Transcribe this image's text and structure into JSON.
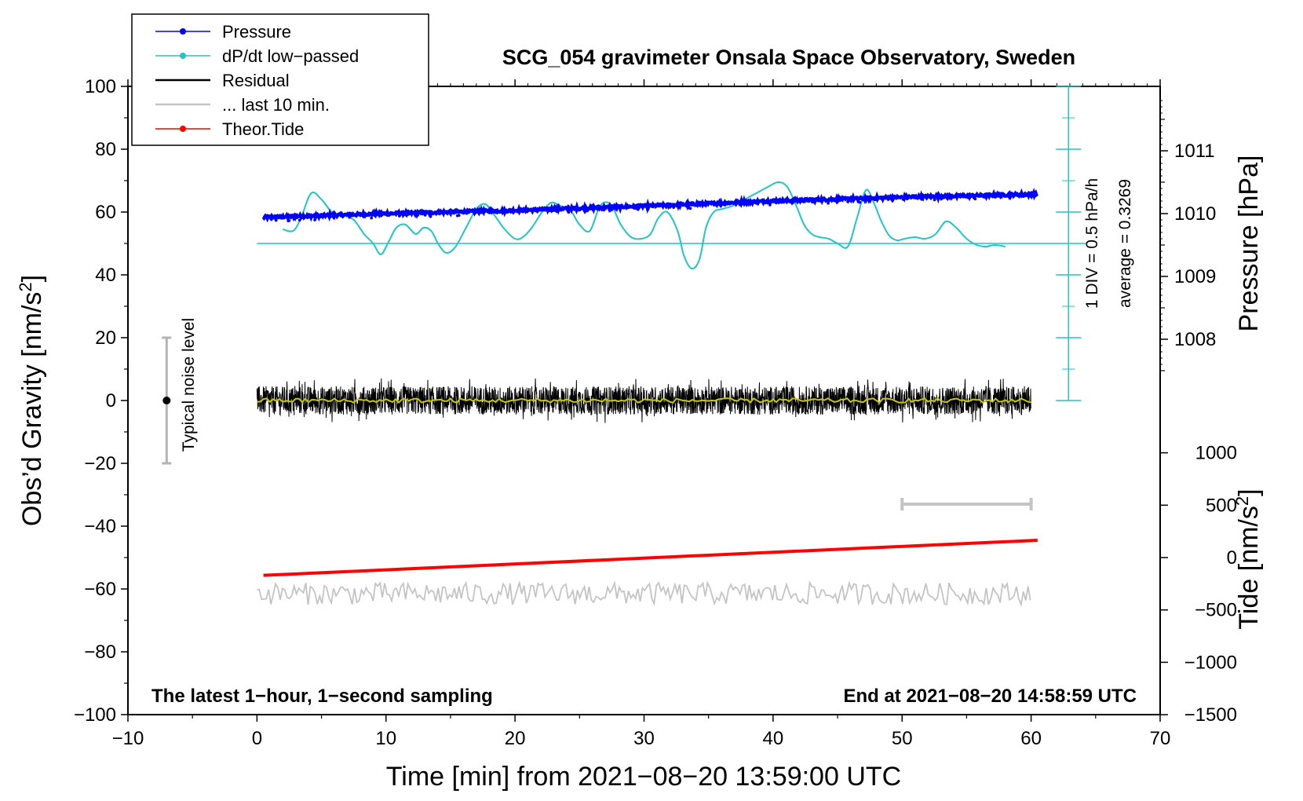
{
  "chart_data": {
    "type": "line",
    "title": "SCG_054 gravimeter Onsala Space Observatory, Sweden",
    "xlabel": "Time [min] from 2021−08−20 13:59:00 UTC",
    "ylabel_left": "Obs’d Gravity [nm/s",
    "ylabel_left_sup": "2",
    "ylabel_left_end": "]",
    "ylabel_right_pressure": "Pressure [hPa]",
    "ylabel_right_tide": "Tide [nm/s",
    "ylabel_right_tide_sup": "2",
    "ylabel_right_tide_end": "]",
    "xlim": [
      -10,
      70
    ],
    "ylim_left": [
      -100,
      100
    ],
    "x_ticks": [
      -10,
      0,
      10,
      20,
      30,
      40,
      50,
      60,
      70
    ],
    "x_tick_labels": [
      "−10",
      "0",
      "10",
      "20",
      "30",
      "40",
      "50",
      "60",
      "70"
    ],
    "y_ticks_left": [
      -100,
      -80,
      -60,
      -40,
      -20,
      0,
      20,
      40,
      60,
      80,
      100
    ],
    "y_tick_labels_left": [
      "−100",
      "−80",
      "−60",
      "−40",
      "−20",
      "0",
      "20",
      "40",
      "60",
      "80",
      "100"
    ],
    "pressure_ticks": [
      1008,
      1009,
      1010,
      1011
    ],
    "pressure_tick_labels": [
      "1008",
      "1009",
      "1010",
      "1011"
    ],
    "tide_ticks": [
      -1500,
      -1000,
      -500,
      0,
      500,
      1000
    ],
    "tide_tick_labels": [
      "−1500",
      "−1000",
      "−500",
      "0",
      "500",
      "1000"
    ],
    "legend": {
      "position": "top-left",
      "entries": [
        {
          "label": "Pressure",
          "color": "#0000ff",
          "marker": true
        },
        {
          "label": "dP/dt low−passed",
          "color": "#22c4c4",
          "marker": true
        },
        {
          "label": "Residual",
          "color": "#000000",
          "marker": false
        },
        {
          "label": "... last 10 min.",
          "color": "#c4c4c4",
          "marker": false
        },
        {
          "label": "Theor.Tide",
          "color": "#ff0000",
          "marker": true
        }
      ]
    },
    "annotations": {
      "bottom_left": "The latest 1−hour, 1−second sampling",
      "bottom_right": "End at 2021−08−20 14:58:59 UTC",
      "noise_label": "Typical noise level",
      "div_label": "1 DIV = 0.5 hPa/h",
      "average_label": "average = 0.3269"
    },
    "series": [
      {
        "name": "Pressure",
        "color": "#0000ff",
        "unit": "hPa",
        "x": [
          0.5,
          10,
          20,
          30,
          40,
          50,
          60.5
        ],
        "y": [
          1009.94,
          1010.0,
          1010.05,
          1010.12,
          1010.2,
          1010.26,
          1010.31
        ]
      },
      {
        "name": "dP/dt low-passed",
        "color": "#22c4c4",
        "baseline_y": 50,
        "x": [
          2,
          2.8,
          3.4,
          4.2,
          5,
          5.8,
          6.6,
          7.5,
          8.3,
          9,
          9.6,
          10.2,
          10.8,
          11.5,
          12.3,
          12.9,
          13.5,
          14.1,
          14.7,
          15.4,
          16.2,
          17,
          17.7,
          18.4,
          19.2,
          20,
          20.6,
          21.3,
          22.1,
          22.8,
          23.5,
          24.3,
          25,
          25.8,
          26.6,
          27.4,
          28.2,
          29,
          29.8,
          30.5,
          31.1,
          31.8,
          32.6,
          33.1,
          33.7,
          34.3,
          34.8,
          35.4,
          36.1,
          36.9,
          37.8,
          38.7,
          39.6,
          40.4,
          41.1,
          41.8,
          42.4,
          43.0,
          43.6,
          44.3,
          45.0,
          45.8,
          46.5,
          47.2,
          47.8,
          48.4,
          49.0,
          49.6,
          50.2,
          51,
          51.8,
          52.6,
          53.4,
          54.2,
          55.0,
          55.8,
          56.5,
          57.2,
          58.0
        ],
        "y": [
          54.5,
          54,
          58,
          66,
          64,
          60,
          59,
          57.5,
          53,
          50,
          46.5,
          50.5,
          55,
          56,
          53,
          55,
          54,
          49.5,
          47,
          49,
          55,
          61,
          62.5,
          59,
          54.5,
          51.5,
          52,
          55,
          60,
          63,
          62,
          60.5,
          56,
          54,
          62,
          62.5,
          56,
          52,
          51.5,
          53,
          58,
          60,
          54,
          46,
          42,
          45,
          55,
          60,
          61,
          62,
          64,
          66,
          68,
          69.5,
          68,
          62,
          56,
          53,
          52,
          51.5,
          50,
          49,
          58,
          67,
          63,
          57,
          52.5,
          51,
          51.5,
          52,
          51.5,
          53,
          57,
          55,
          51.5,
          49.5,
          49,
          49.5,
          49
        ]
      },
      {
        "name": "Residual",
        "color": "#000000",
        "x_start": 0,
        "x_end": 60,
        "y_mean": 0,
        "noise_amplitude": 4.5,
        "smoothed_color": "#c8c800"
      },
      {
        "name": "... last 10 min.",
        "color": "#c4c4c4",
        "x_start": 0,
        "x_end": 60,
        "y_mean": -61.5,
        "noise_amplitude": 3.5,
        "span_x": [
          50,
          60
        ],
        "span_y": -33
      },
      {
        "name": "Theor.Tide",
        "color": "#ff0000",
        "unit": "nm/s2",
        "x": [
          0.5,
          60.5
        ],
        "y": [
          -170,
          165
        ]
      }
    ],
    "noise_bar": {
      "x": -7,
      "y": 0,
      "ymin": -20,
      "ymax": 20
    },
    "div_scale": {
      "x": 62.9,
      "ymin": 0,
      "ymax": 100,
      "major_step": 20,
      "minor_step": 10
    }
  }
}
